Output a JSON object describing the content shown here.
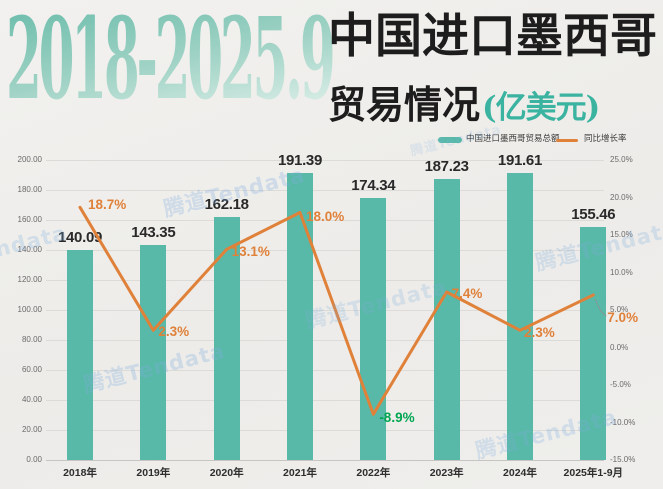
{
  "header": {
    "year_range": "2018-2025.9",
    "title_line1": "中国进口墨西哥",
    "title_line2": "贸易情况",
    "unit": "(亿美元)"
  },
  "legend": {
    "bars": "中国进口墨西哥贸易总额",
    "line": "同比增长率"
  },
  "watermark": "腾道Tendata",
  "colors": {
    "bar": "#58b9a8",
    "line": "#e0813a",
    "positive_label": "#e0813a",
    "negative_label": "#00a551",
    "unit_teal": "#3bb3a1",
    "title_gradient_top": "#6fbead",
    "title_gradient_bottom": "#ddefe9"
  },
  "chart_data": {
    "type": "bar",
    "subtype": "bar+line-combo",
    "title": "2018-2025.9 中国进口墨西哥贸易情况(亿美元)",
    "categories": [
      "2018年",
      "2019年",
      "2020年",
      "2021年",
      "2022年",
      "2023年",
      "2024年",
      "2025年1-9月"
    ],
    "series": [
      {
        "name": "中国进口墨西哥贸易总额",
        "type": "bar",
        "axis": "left",
        "values": [
          140.09,
          143.35,
          162.18,
          191.39,
          174.34,
          187.23,
          191.61,
          155.46
        ],
        "labels": [
          "140.09",
          "143.35",
          "162.18",
          "191.39",
          "174.34",
          "187.23",
          "191.61",
          "155.46"
        ]
      },
      {
        "name": "同比增长率",
        "type": "line",
        "axis": "right",
        "values": [
          18.7,
          2.3,
          13.1,
          18.0,
          -8.9,
          7.4,
          2.3,
          7.0
        ],
        "labels": [
          "18.7%",
          "2.3%",
          "13.1%",
          "18.0%",
          "-8.9%",
          "7.4%",
          "2.3%",
          "7.0%"
        ]
      }
    ],
    "left_axis": {
      "min": 0,
      "max": 200,
      "step": 20,
      "ticks": [
        "200.00",
        "180.00",
        "160.00",
        "140.00",
        "120.00",
        "100.00",
        "80.00",
        "60.00",
        "40.00",
        "20.00",
        "0.00"
      ]
    },
    "right_axis": {
      "min": -15,
      "max": 25,
      "step": 5,
      "ticks": [
        "25.0%",
        "20.0%",
        "15.0%",
        "10.0%",
        "5.0%",
        "0.0%",
        "-5.0%",
        "-10.0%",
        "-15.0%"
      ]
    },
    "grid": true,
    "legend_position": "top-right"
  }
}
